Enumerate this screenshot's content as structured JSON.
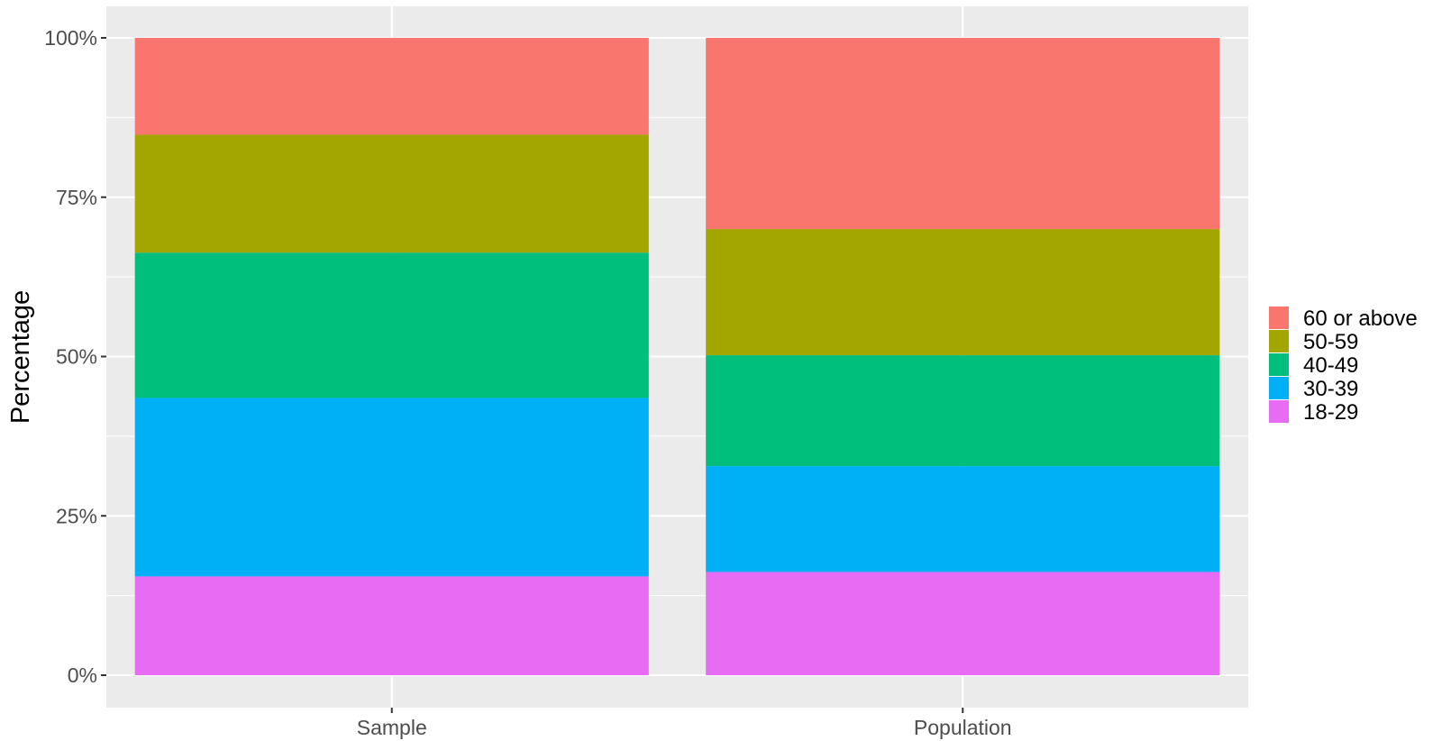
{
  "chart_data": {
    "type": "bar",
    "stacked": true,
    "categories": [
      "Sample",
      "Population"
    ],
    "series": [
      {
        "name": "18-29",
        "values": [
          15.5,
          16.2
        ],
        "color": "#E76BF3"
      },
      {
        "name": "30-39",
        "values": [
          28.0,
          16.6
        ],
        "color": "#00B0F6"
      },
      {
        "name": "40-49",
        "values": [
          22.8,
          17.4
        ],
        "color": "#00BF7D"
      },
      {
        "name": "50-59",
        "values": [
          18.5,
          19.8
        ],
        "color": "#A3A500"
      },
      {
        "name": "60 or above",
        "values": [
          15.2,
          30.0
        ],
        "color": "#F8766D"
      }
    ],
    "ylabel": "Percentage",
    "xlabel": "",
    "ylim": [
      0,
      100
    ],
    "yticks": [
      "0%",
      "25%",
      "50%",
      "75%",
      "100%"
    ],
    "grid": true,
    "legend_position": "right",
    "legend_order": [
      "60 or above",
      "50-59",
      "40-49",
      "30-39",
      "18-29"
    ],
    "panel_color": "#EBEBEB",
    "grid_color": "#FFFFFF"
  }
}
